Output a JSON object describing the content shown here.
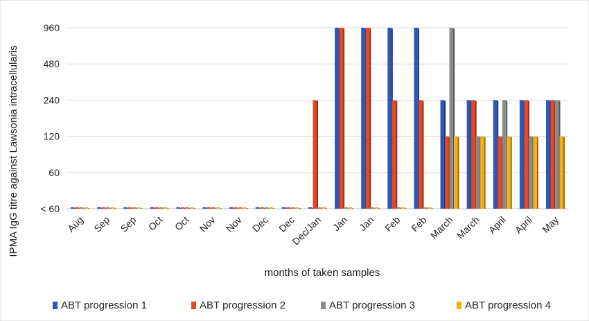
{
  "chart_data": {
    "type": "bar",
    "xlabel": "months of taken samples",
    "ylabel": "IPMA IgG titre against Lawsonia intracellularis",
    "y_ticks": [
      "< 60",
      "60",
      "120",
      "240",
      "480",
      "960"
    ],
    "y_scale": "log2 categorical levels (<60, 60, 120, 240, 480, 960)",
    "categories": [
      "Aug",
      "Sep",
      "Sep",
      "Oct",
      "Oct",
      "Nov",
      "Nov",
      "Dec",
      "Dec",
      "Dec/Jan",
      "Jan",
      "Jan",
      "Feb",
      "Feb",
      "March",
      "March",
      "April",
      "April",
      "May"
    ],
    "series": [
      {
        "name": "ABT progression 1",
        "color": "#2e56b8",
        "values": [
          "<60",
          "<60",
          "<60",
          "<60",
          "<60",
          "<60",
          "<60",
          "<60",
          "<60",
          "<60",
          960,
          960,
          960,
          960,
          240,
          240,
          240,
          240,
          240
        ]
      },
      {
        "name": "ABT progression 2",
        "color": "#e8481f",
        "values": [
          "<60",
          "<60",
          "<60",
          "<60",
          "<60",
          "<60",
          "<60",
          "<60",
          "<60",
          240,
          960,
          960,
          240,
          240,
          120,
          240,
          120,
          240,
          240
        ]
      },
      {
        "name": "ABT progression 3",
        "color": "#8c8c8c",
        "values": [
          "<60",
          "<60",
          "<60",
          "<60",
          "<60",
          "<60",
          "<60",
          "<60",
          "<60",
          "<60",
          "<60",
          "<60",
          "<60",
          "<60",
          960,
          120,
          240,
          120,
          240
        ]
      },
      {
        "name": "ABT progression 4",
        "color": "#f5b014",
        "values": [
          "<60",
          "<60",
          "<60",
          "<60",
          "<60",
          "<60",
          "<60",
          "<60",
          "<60",
          "<60",
          "<60",
          "<60",
          "<60",
          "<60",
          120,
          120,
          120,
          120,
          120
        ]
      }
    ],
    "grid": true,
    "legend_position": "bottom"
  }
}
